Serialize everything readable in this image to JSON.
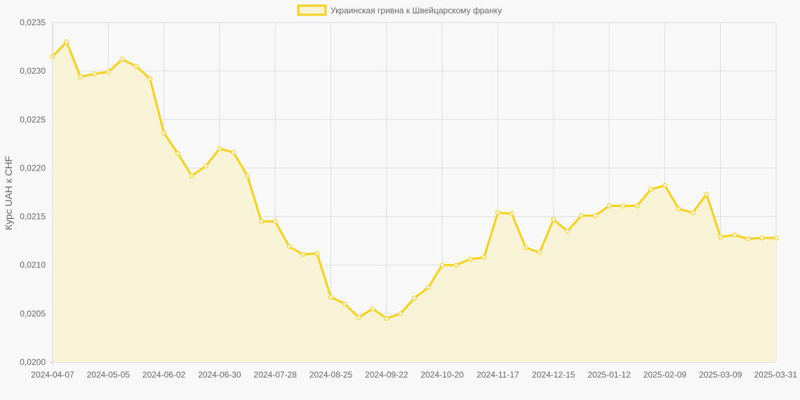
{
  "chart_data": {
    "type": "line",
    "ylabel": "Курс UAH к CHF",
    "ylim": [
      0.02,
      0.0235
    ],
    "y_ticks": [
      "0,0235",
      "0,0230",
      "0,0225",
      "0,0220",
      "0,0215",
      "0,0210",
      "0,0205",
      "0,0200"
    ],
    "y_tick_values": [
      0.0235,
      0.023,
      0.0225,
      0.022,
      0.0215,
      0.021,
      0.0205,
      0.02
    ],
    "x_tick_labels": [
      "2024-04-07",
      "2024-05-05",
      "2024-06-02",
      "2024-06-30",
      "2024-07-28",
      "2024-08-25",
      "2024-09-22",
      "2024-10-20",
      "2024-11-17",
      "2024-12-15",
      "2025-01-12",
      "2025-02-09",
      "2025-03-09",
      "2025-03-31"
    ],
    "x_tick_indices": [
      0,
      4,
      8,
      12,
      16,
      20,
      24,
      28,
      32,
      36,
      40,
      44,
      48,
      52
    ],
    "grid": true,
    "legend_position": "top-center",
    "colors": {
      "line": "#f5d21a",
      "fill": "#f8f3d6",
      "grid": "#dddddd",
      "axis": "#c8c8c8",
      "background": "#f8f8f8"
    },
    "series": [
      {
        "name": "Украинская гривна к Швейцарскому франку",
        "values": [
          0.02315,
          0.0233,
          0.02294,
          0.02297,
          0.02299,
          0.02312,
          0.02305,
          0.02292,
          0.02236,
          0.02215,
          0.02192,
          0.02202,
          0.0222,
          0.02216,
          0.02192,
          0.02145,
          0.02145,
          0.02119,
          0.02111,
          0.02112,
          0.02067,
          0.0206,
          0.02046,
          0.02055,
          0.02045,
          0.0205,
          0.02066,
          0.02077,
          0.021,
          0.021,
          0.02106,
          0.02108,
          0.02154,
          0.02153,
          0.02118,
          0.02113,
          0.02147,
          0.02135,
          0.02151,
          0.02151,
          0.02161,
          0.02161,
          0.02161,
          0.02178,
          0.02182,
          0.02158,
          0.02154,
          0.02173,
          0.02129,
          0.02131,
          0.02127,
          0.02128,
          0.02128
        ]
      }
    ]
  }
}
